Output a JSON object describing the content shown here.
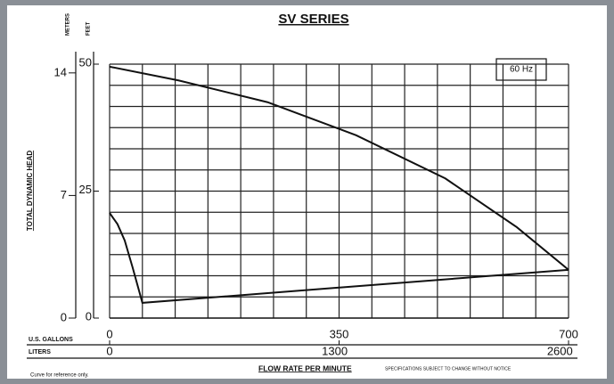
{
  "chart_data": {
    "type": "line",
    "title": "SV SERIES",
    "legend_box": "60 Hz",
    "y_label": "TOTAL DYNAMIC HEAD",
    "y_unit": "FEET",
    "y2_unit": "METERS",
    "x_label": "U.S. GALLONS",
    "x2_label": "LITERS",
    "footer_title": "FLOW RATE PER MINUTE",
    "footer_note": "SPECIFICATIONS SUBJECT TO CHANGE WITHOUT NOTICE",
    "note": "Curve for reference only.",
    "xlim": [
      0,
      700
    ],
    "xticks": [
      0,
      350,
      700
    ],
    "x2lim": [
      0,
      2650
    ],
    "x2ticks": [
      0,
      1300,
      2600
    ],
    "ylim": [
      0,
      50
    ],
    "yticks": [
      0,
      25,
      50
    ],
    "y2lim": [
      0,
      14.5
    ],
    "y2ticks": [
      0,
      7,
      14
    ],
    "xgrid": [
      0,
      50,
      100,
      150,
      200,
      250,
      300,
      350,
      400,
      450,
      500,
      550,
      600,
      650,
      700
    ],
    "ygrid": [
      4.17,
      8.33,
      12.5,
      16.67,
      20.83,
      25,
      29.17,
      33.33,
      37.5,
      41.67,
      45.83,
      50
    ],
    "grid": true,
    "color": "#111111",
    "series": [
      {
        "x": [
          0,
          105,
          241,
          376,
          512,
          621,
          700
        ],
        "values": [
          49.5,
          46.8,
          42.5,
          36,
          27.5,
          17.9,
          9.5
        ]
      },
      {
        "x": [
          0,
          12,
          23,
          35,
          50,
          700
        ],
        "values": [
          20.7,
          18.5,
          15.3,
          10,
          3,
          9.5
        ]
      }
    ]
  }
}
